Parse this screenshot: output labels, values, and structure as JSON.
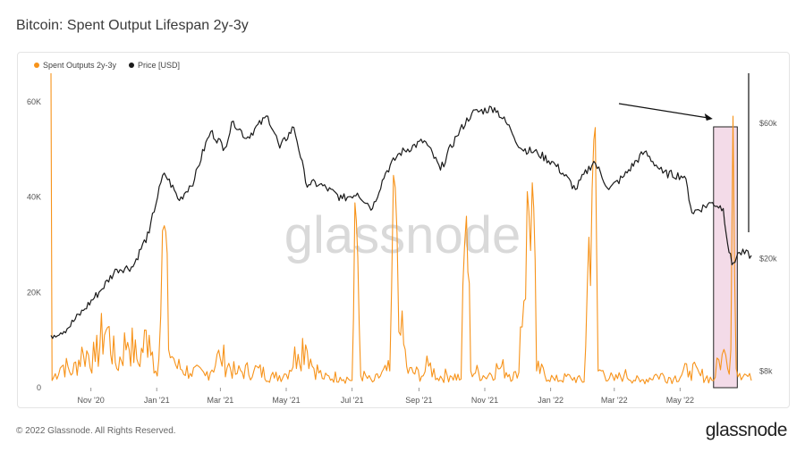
{
  "title": "Bitcoin: Spent Output Lifespan 2y-3y",
  "footer": "© 2022 Glassnode. All Rights Reserved.",
  "brand": "glassnode",
  "watermark": "glassnode",
  "colors": {
    "spent": "#f7931a",
    "price": "#1a1a1a",
    "highlight_fill": "#f3dbe8",
    "highlight_stroke": "#222222"
  },
  "legend": [
    {
      "label": "Spent Outputs 2y-3y",
      "color": "#f7931a"
    },
    {
      "label": "Price [USD]",
      "color": "#1a1a1a"
    }
  ],
  "chart_data": {
    "type": "line",
    "x_start": "2020-09-25",
    "x_end": "2022-07-06",
    "x_tick_labels": [
      "Nov '20",
      "Jan '21",
      "Mar '21",
      "May '21",
      "Jul '21",
      "Sep '21",
      "Nov '21",
      "Jan '22",
      "Mar '22",
      "May '22"
    ],
    "x_tick_dates": [
      "2020-11-01",
      "2021-01-01",
      "2021-03-01",
      "2021-05-01",
      "2021-07-01",
      "2021-09-01",
      "2021-11-01",
      "2022-01-01",
      "2022-03-01",
      "2022-05-01"
    ],
    "y_left": {
      "ticks": [
        0,
        20000,
        40000,
        60000
      ],
      "tick_labels": [
        "0",
        "20K",
        "40K",
        "60K"
      ],
      "range": [
        0,
        66000
      ]
    },
    "y_right": {
      "scale": "log",
      "ticks": [
        8000,
        20000,
        60000
      ],
      "tick_labels": [
        "$8k",
        "$20k",
        "$60k"
      ],
      "range": [
        7000,
        90000
      ]
    },
    "annotation": {
      "type": "arrow_and_box",
      "highlight_start": "2022-06-01",
      "highlight_end": "2022-06-23",
      "arrow_target_value": 57000
    },
    "series": [
      {
        "name": "Price [USD]",
        "axis": "right",
        "points": [
          [
            "2020-09-25",
            10700
          ],
          [
            "2020-10-10",
            11300
          ],
          [
            "2020-10-25",
            13100
          ],
          [
            "2020-11-10",
            15400
          ],
          [
            "2020-11-25",
            18300
          ],
          [
            "2020-12-10",
            18700
          ],
          [
            "2020-12-25",
            24600
          ],
          [
            "2021-01-08",
            40000
          ],
          [
            "2021-01-22",
            32000
          ],
          [
            "2021-02-05",
            38000
          ],
          [
            "2021-02-20",
            56000
          ],
          [
            "2021-03-05",
            49000
          ],
          [
            "2021-03-13",
            61000
          ],
          [
            "2021-03-25",
            53000
          ],
          [
            "2021-04-14",
            63500
          ],
          [
            "2021-04-25",
            49000
          ],
          [
            "2021-05-08",
            58000
          ],
          [
            "2021-05-19",
            37000
          ],
          [
            "2021-06-01",
            36500
          ],
          [
            "2021-06-22",
            32500
          ],
          [
            "2021-07-06",
            34000
          ],
          [
            "2021-07-20",
            30000
          ],
          [
            "2021-08-01",
            40000
          ],
          [
            "2021-08-14",
            47000
          ],
          [
            "2021-09-06",
            52000
          ],
          [
            "2021-09-21",
            41000
          ],
          [
            "2021-10-06",
            54000
          ],
          [
            "2021-10-20",
            65000
          ],
          [
            "2021-11-10",
            68000
          ],
          [
            "2021-11-25",
            57000
          ],
          [
            "2021-12-04",
            49000
          ],
          [
            "2021-12-20",
            47000
          ],
          [
            "2022-01-05",
            43000
          ],
          [
            "2022-01-24",
            35000
          ],
          [
            "2022-02-10",
            44000
          ],
          [
            "2022-02-24",
            35000
          ],
          [
            "2022-03-10",
            39000
          ],
          [
            "2022-03-29",
            47500
          ],
          [
            "2022-04-15",
            40000
          ],
          [
            "2022-05-05",
            39000
          ],
          [
            "2022-05-12",
            29000
          ],
          [
            "2022-05-31",
            31500
          ],
          [
            "2022-06-10",
            30000
          ],
          [
            "2022-06-14",
            22500
          ],
          [
            "2022-06-18",
            19000
          ],
          [
            "2022-06-25",
            21000
          ],
          [
            "2022-07-06",
            20500
          ]
        ]
      },
      {
        "name": "Spent Outputs 2y-3y",
        "axis": "left",
        "points": [
          [
            "2020-09-25",
            66000
          ],
          [
            "2020-09-26",
            1500
          ],
          [
            "2020-10-05",
            4500
          ],
          [
            "2020-10-15",
            3000
          ],
          [
            "2020-10-25",
            7000
          ],
          [
            "2020-11-05",
            5500
          ],
          [
            "2020-11-15",
            12000
          ],
          [
            "2020-11-25",
            4000
          ],
          [
            "2020-12-05",
            9500
          ],
          [
            "2020-12-15",
            5000
          ],
          [
            "2020-12-25",
            11000
          ],
          [
            "2020-12-31",
            3500
          ],
          [
            "2021-01-03",
            6000
          ],
          [
            "2021-01-08",
            34000
          ],
          [
            "2021-01-12",
            8000
          ],
          [
            "2021-01-20",
            4000
          ],
          [
            "2021-02-01",
            3000
          ],
          [
            "2021-02-15",
            2500
          ],
          [
            "2021-03-01",
            6000
          ],
          [
            "2021-03-15",
            2800
          ],
          [
            "2021-04-01",
            3500
          ],
          [
            "2021-04-20",
            2000
          ],
          [
            "2021-05-01",
            2800
          ],
          [
            "2021-05-12",
            7000
          ],
          [
            "2021-05-19",
            9000
          ],
          [
            "2021-05-25",
            4500
          ],
          [
            "2021-06-05",
            1800
          ],
          [
            "2021-06-20",
            2200
          ],
          [
            "2021-07-01",
            1500
          ],
          [
            "2021-07-05",
            35000
          ],
          [
            "2021-07-09",
            2500
          ],
          [
            "2021-07-20",
            1200
          ],
          [
            "2021-08-05",
            3500
          ],
          [
            "2021-08-10",
            42000
          ],
          [
            "2021-08-15",
            11000
          ],
          [
            "2021-08-22",
            3000
          ],
          [
            "2021-09-05",
            2500
          ],
          [
            "2021-09-10",
            4500
          ],
          [
            "2021-09-18",
            2000
          ],
          [
            "2021-09-30",
            2500
          ],
          [
            "2021-10-10",
            1800
          ],
          [
            "2021-10-15",
            36000
          ],
          [
            "2021-10-19",
            3500
          ],
          [
            "2021-11-01",
            2200
          ],
          [
            "2021-11-15",
            4000
          ],
          [
            "2021-12-01",
            2000
          ],
          [
            "2021-12-15",
            43000
          ],
          [
            "2021-12-19",
            3500
          ],
          [
            "2022-01-05",
            1500
          ],
          [
            "2022-01-20",
            2000
          ],
          [
            "2022-02-01",
            1200
          ],
          [
            "2022-02-10",
            52000
          ],
          [
            "2022-02-14",
            3500
          ],
          [
            "2022-03-01",
            1500
          ],
          [
            "2022-03-10",
            2500
          ],
          [
            "2022-03-25",
            1200
          ],
          [
            "2022-04-10",
            2500
          ],
          [
            "2022-04-25",
            1800
          ],
          [
            "2022-05-10",
            3500
          ],
          [
            "2022-05-20",
            2500
          ],
          [
            "2022-06-01",
            1500
          ],
          [
            "2022-06-09",
            7000
          ],
          [
            "2022-06-14",
            4000
          ],
          [
            "2022-06-17",
            8000
          ],
          [
            "2022-06-19",
            57000
          ],
          [
            "2022-06-22",
            4000
          ],
          [
            "2022-07-06",
            1500
          ]
        ]
      }
    ]
  }
}
